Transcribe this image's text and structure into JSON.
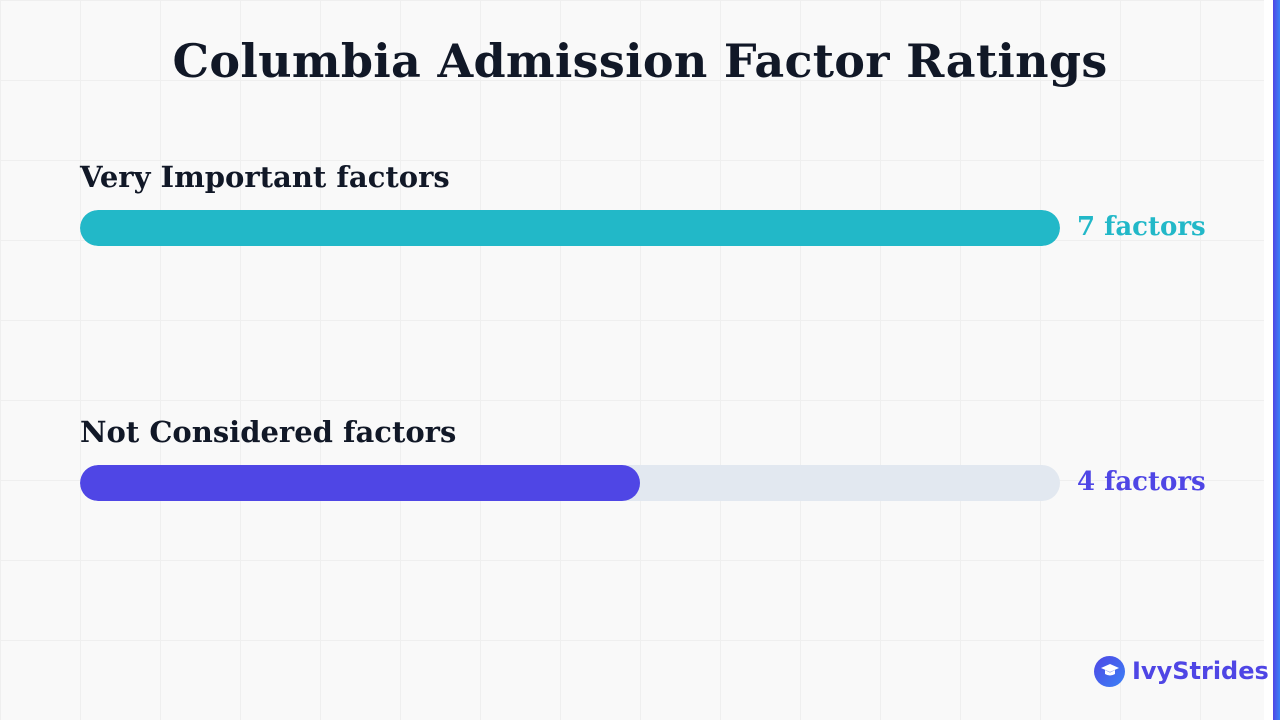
{
  "chart_data": {
    "type": "bar",
    "title": "Columbia Admission Factor Ratings",
    "max_value": 7,
    "series": [
      {
        "name": "Very Important factors",
        "value": 7,
        "value_label": "7 factors",
        "color": "#22b8c8"
      },
      {
        "name": "Not Considered factors",
        "value": 4,
        "value_label": "4 factors",
        "color": "#4f46e5"
      }
    ],
    "track_color": "#e2e8f0"
  },
  "logo": {
    "text": "IvyStrides",
    "icon": "graduation-cap-icon"
  }
}
